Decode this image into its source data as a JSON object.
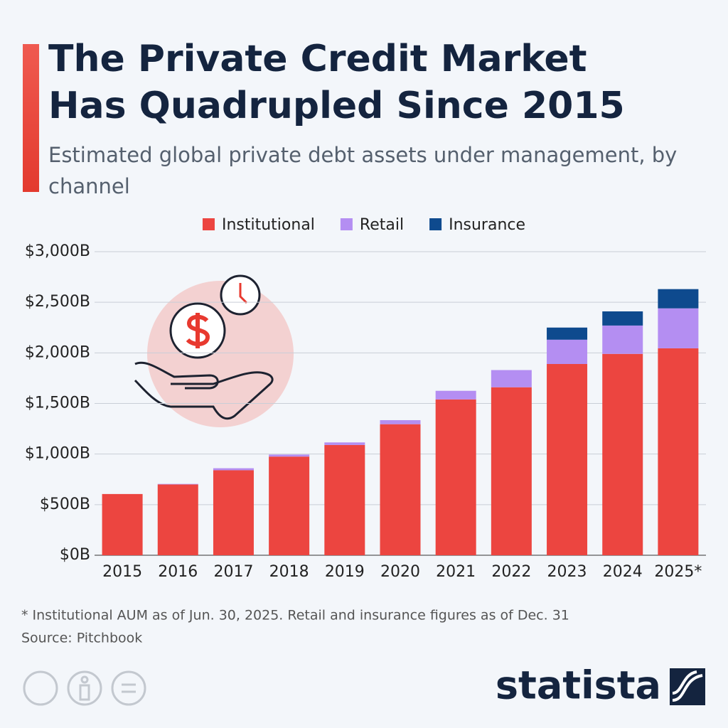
{
  "chart_data": {
    "type": "stacked-bar",
    "title": "The Private Credit Market Has Quadrupled Since 2015",
    "subtitle": "Estimated global private debt assets under management, by channel",
    "categories": [
      "2015",
      "2016",
      "2017",
      "2018",
      "2019",
      "2020",
      "2021",
      "2022",
      "2023",
      "2024",
      "2025*"
    ],
    "series": [
      {
        "name": "Institutional",
        "color": "#ec4540",
        "values": [
          605,
          700,
          840,
          975,
          1090,
          1295,
          1540,
          1660,
          1890,
          1990,
          2045
        ]
      },
      {
        "name": "Retail",
        "color": "#b48ef2",
        "values": [
          0,
          5,
          20,
          20,
          25,
          40,
          85,
          170,
          240,
          280,
          395
        ]
      },
      {
        "name": "Insurance",
        "color": "#0e4a8e",
        "values": [
          0,
          0,
          0,
          0,
          0,
          0,
          0,
          0,
          120,
          140,
          190
        ]
      }
    ],
    "ylim": [
      0,
      3000
    ],
    "yticks": [
      {
        "value": 0,
        "label": "$0B"
      },
      {
        "value": 500,
        "label": "$500B"
      },
      {
        "value": 1000,
        "label": "$1,000B"
      },
      {
        "value": 1500,
        "label": "$1,500B"
      },
      {
        "value": 2000,
        "label": "$2,000B"
      },
      {
        "value": 2500,
        "label": "$2,500B"
      },
      {
        "value": 3000,
        "label": "$3,000B"
      }
    ],
    "grid": true,
    "legend": "top",
    "note": "* Institutional AUM as of Jun. 30, 2025. Retail and insurance figures as of Dec. 31",
    "source": "Source: Pitchbook",
    "logo": "statista"
  }
}
